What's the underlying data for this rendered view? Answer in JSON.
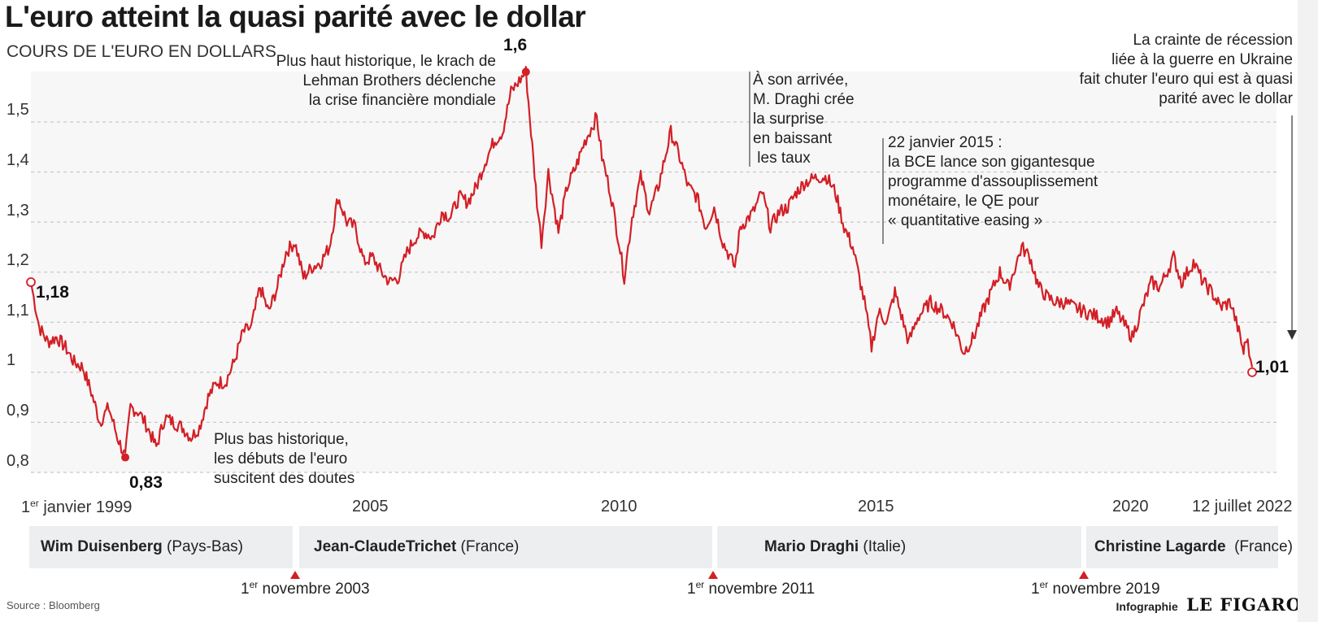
{
  "title": "L'euro atteint la quasi parité avec le dollar",
  "subtitle": "COURS DE L'EURO EN DOLLARS",
  "colors": {
    "line": "#d31f26",
    "grid": "#bdbdbd",
    "band": "#eceef0"
  },
  "chart_data": {
    "type": "line",
    "ylabel": "COURS DE L'EURO EN DOLLARS",
    "ylim": [
      0.79,
      1.62
    ],
    "xlim": [
      "1999-01-01",
      "2022-07-12"
    ],
    "yticks": [
      "0,8",
      "0,9",
      "1",
      "1,1",
      "1,2",
      "1,3",
      "1,4",
      "1,5"
    ],
    "xticks": [
      {
        "label_pre": "1",
        "label_sup": "er",
        "label_post": " janvier 1999",
        "x": "1999-01-01"
      },
      {
        "label": "2005",
        "x": "2005-01-01"
      },
      {
        "label": "2010",
        "x": "2010-01-01"
      },
      {
        "label": "2015",
        "x": "2015-01-01"
      },
      {
        "label": "2020",
        "x": "2020-01-01"
      },
      {
        "label": "12 juillet 2022",
        "x": "2022-07-12"
      }
    ],
    "series": [
      {
        "values_note": "EUR/USD monthly (approx.)",
        "points": [
          [
            "1999-01-01",
            1.18
          ],
          [
            "1999-03-01",
            1.09
          ],
          [
            "1999-05-01",
            1.06
          ],
          [
            "1999-07-01",
            1.07
          ],
          [
            "1999-09-01",
            1.05
          ],
          [
            "1999-11-01",
            1.02
          ],
          [
            "2000-01-01",
            1.01
          ],
          [
            "2000-03-01",
            0.96
          ],
          [
            "2000-05-01",
            0.9
          ],
          [
            "2000-07-01",
            0.93
          ],
          [
            "2000-09-01",
            0.87
          ],
          [
            "2000-10-26",
            0.83
          ],
          [
            "2000-12-01",
            0.93
          ],
          [
            "2001-02-01",
            0.92
          ],
          [
            "2001-04-01",
            0.89
          ],
          [
            "2001-06-01",
            0.85
          ],
          [
            "2001-08-01",
            0.91
          ],
          [
            "2001-10-01",
            0.9
          ],
          [
            "2001-12-01",
            0.89
          ],
          [
            "2002-02-01",
            0.87
          ],
          [
            "2002-04-01",
            0.89
          ],
          [
            "2002-06-01",
            0.95
          ],
          [
            "2002-08-01",
            0.98
          ],
          [
            "2002-10-01",
            0.98
          ],
          [
            "2002-12-01",
            1.02
          ],
          [
            "2003-02-01",
            1.08
          ],
          [
            "2003-04-01",
            1.09
          ],
          [
            "2003-06-01",
            1.17
          ],
          [
            "2003-08-01",
            1.12
          ],
          [
            "2003-10-01",
            1.17
          ],
          [
            "2003-12-01",
            1.24
          ],
          [
            "2004-02-01",
            1.26
          ],
          [
            "2004-04-01",
            1.19
          ],
          [
            "2004-06-01",
            1.21
          ],
          [
            "2004-08-01",
            1.22
          ],
          [
            "2004-10-01",
            1.25
          ],
          [
            "2004-12-01",
            1.35
          ],
          [
            "2005-02-01",
            1.3
          ],
          [
            "2005-04-01",
            1.29
          ],
          [
            "2005-06-01",
            1.22
          ],
          [
            "2005-08-01",
            1.23
          ],
          [
            "2005-10-01",
            1.2
          ],
          [
            "2005-12-01",
            1.18
          ],
          [
            "2006-02-01",
            1.19
          ],
          [
            "2006-04-01",
            1.24
          ],
          [
            "2006-06-01",
            1.27
          ],
          [
            "2006-08-01",
            1.28
          ],
          [
            "2006-10-01",
            1.27
          ],
          [
            "2006-12-01",
            1.32
          ],
          [
            "2007-02-01",
            1.31
          ],
          [
            "2007-04-01",
            1.35
          ],
          [
            "2007-06-01",
            1.34
          ],
          [
            "2007-08-01",
            1.37
          ],
          [
            "2007-10-01",
            1.42
          ],
          [
            "2007-12-01",
            1.46
          ],
          [
            "2008-02-01",
            1.48
          ],
          [
            "2008-04-01",
            1.56
          ],
          [
            "2008-07-15",
            1.6
          ],
          [
            "2008-08-20",
            1.48
          ],
          [
            "2008-10-01",
            1.34
          ],
          [
            "2008-11-01",
            1.26
          ],
          [
            "2008-12-20",
            1.4
          ],
          [
            "2009-03-01",
            1.28
          ],
          [
            "2009-05-01",
            1.37
          ],
          [
            "2009-07-01",
            1.41
          ],
          [
            "2009-09-01",
            1.46
          ],
          [
            "2009-11-25",
            1.51
          ],
          [
            "2010-01-01",
            1.43
          ],
          [
            "2010-03-01",
            1.36
          ],
          [
            "2010-05-01",
            1.26
          ],
          [
            "2010-06-07",
            1.19
          ],
          [
            "2010-08-01",
            1.31
          ],
          [
            "2010-10-01",
            1.39
          ],
          [
            "2010-12-01",
            1.32
          ],
          [
            "2011-02-01",
            1.37
          ],
          [
            "2011-05-01",
            1.48
          ],
          [
            "2011-07-01",
            1.43
          ],
          [
            "2011-09-01",
            1.37
          ],
          [
            "2011-11-01",
            1.35
          ],
          [
            "2012-01-01",
            1.29
          ],
          [
            "2012-03-01",
            1.33
          ],
          [
            "2012-05-01",
            1.26
          ],
          [
            "2012-07-24",
            1.21
          ],
          [
            "2012-09-01",
            1.29
          ],
          [
            "2012-12-01",
            1.32
          ],
          [
            "2013-02-01",
            1.36
          ],
          [
            "2013-04-01",
            1.29
          ],
          [
            "2013-06-01",
            1.32
          ],
          [
            "2013-08-01",
            1.33
          ],
          [
            "2013-10-01",
            1.36
          ],
          [
            "2013-12-01",
            1.38
          ],
          [
            "2014-03-01",
            1.39
          ],
          [
            "2014-05-01",
            1.39
          ],
          [
            "2014-07-01",
            1.36
          ],
          [
            "2014-09-01",
            1.29
          ],
          [
            "2014-11-01",
            1.25
          ],
          [
            "2015-01-22",
            1.14
          ],
          [
            "2015-03-13",
            1.05
          ],
          [
            "2015-05-01",
            1.12
          ],
          [
            "2015-07-01",
            1.1
          ],
          [
            "2015-08-24",
            1.16
          ],
          [
            "2015-11-30",
            1.06
          ],
          [
            "2016-02-01",
            1.11
          ],
          [
            "2016-05-01",
            1.14
          ],
          [
            "2016-08-01",
            1.12
          ],
          [
            "2016-10-01",
            1.1
          ],
          [
            "2016-12-20",
            1.04
          ],
          [
            "2017-03-01",
            1.07
          ],
          [
            "2017-05-01",
            1.12
          ],
          [
            "2017-07-01",
            1.16
          ],
          [
            "2017-09-01",
            1.2
          ],
          [
            "2017-11-01",
            1.17
          ],
          [
            "2018-02-01",
            1.25
          ],
          [
            "2018-04-01",
            1.23
          ],
          [
            "2018-06-01",
            1.17
          ],
          [
            "2018-08-01",
            1.15
          ],
          [
            "2018-10-01",
            1.14
          ],
          [
            "2018-12-01",
            1.14
          ],
          [
            "2019-02-01",
            1.13
          ],
          [
            "2019-05-01",
            1.12
          ],
          [
            "2019-08-01",
            1.11
          ],
          [
            "2019-10-01",
            1.1
          ],
          [
            "2019-12-01",
            1.12
          ],
          [
            "2020-03-20",
            1.07
          ],
          [
            "2020-06-01",
            1.13
          ],
          [
            "2020-08-01",
            1.18
          ],
          [
            "2020-10-01",
            1.17
          ],
          [
            "2021-01-06",
            1.23
          ],
          [
            "2021-03-01",
            1.18
          ],
          [
            "2021-05-25",
            1.22
          ],
          [
            "2021-08-01",
            1.18
          ],
          [
            "2021-10-01",
            1.16
          ],
          [
            "2021-12-01",
            1.13
          ],
          [
            "2022-02-10",
            1.14
          ],
          [
            "2022-04-01",
            1.09
          ],
          [
            "2022-05-13",
            1.04
          ],
          [
            "2022-06-01",
            1.07
          ],
          [
            "2022-07-12",
            1.01
          ]
        ]
      }
    ],
    "data_labels": {
      "start": "1,18",
      "low": "0,83",
      "high": "1,6",
      "end": "1,01"
    },
    "markers": [
      {
        "x": "1999-01-01",
        "y": 1.18,
        "style": "hollow"
      },
      {
        "x": "2000-10-26",
        "y": 0.83,
        "style": "filled"
      },
      {
        "x": "2008-07-15",
        "y": 1.6,
        "style": "filled"
      },
      {
        "x": "2022-07-12",
        "y": 1.0,
        "style": "hollow"
      }
    ],
    "annotations": {
      "low": [
        "Plus bas historique,",
        "les débuts de l'euro",
        "suscitent des doutes"
      ],
      "high": [
        "Plus haut historique, le krach de",
        "Lehman Brothers déclenche",
        "la crise financière mondiale"
      ],
      "draghi": [
        "À son arrivée,",
        "M. Draghi crée",
        "la surprise",
        "en baissant",
        " les taux"
      ],
      "qe": [
        "22 janvier 2015 :",
        "la BCE lance son gigantesque",
        "programme d'assouplissement",
        "monétaire, le QE pour",
        "« quantitative easing »"
      ],
      "recession": [
        "La crainte de récession",
        "liée à la guerre en Ukraine",
        "fait chuter l'euro qui est à quasi",
        "parité avec le dollar"
      ]
    },
    "grid": true,
    "legend": "none"
  },
  "presidents": [
    {
      "name": "Wim Duisenberg",
      "country": " (Pays-Bas)"
    },
    {
      "name": "Jean-ClaudeTrichet",
      "country": " (France)"
    },
    {
      "name": "Mario Draghi",
      "country": " (Italie)"
    },
    {
      "name": "Christine Lagarde",
      "country": "  (France)"
    }
  ],
  "mandates": [
    {
      "pre": "1",
      "sup": "er",
      "post": " novembre 2003"
    },
    {
      "pre": "1",
      "sup": "er",
      "post": " novembre 2011"
    },
    {
      "pre": "1",
      "sup": "er",
      "post": " novembre 2019"
    }
  ],
  "source": "Source : Bloomberg",
  "credit": {
    "label": "Infographie",
    "brand": "LE FIGARO"
  }
}
